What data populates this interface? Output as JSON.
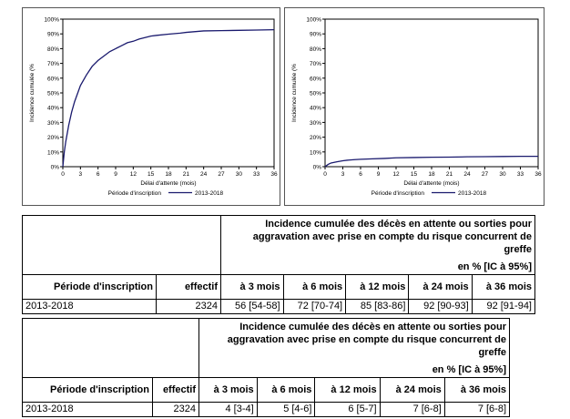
{
  "chart_data": [
    {
      "type": "line",
      "xlabel": "Délai d'attente (mois)",
      "ylabel": "Incidence cumulée (%",
      "xlim": [
        0,
        36
      ],
      "ylim": [
        0,
        100
      ],
      "x_ticks": [
        "0",
        "3",
        "6",
        "9",
        "12",
        "15",
        "18",
        "21",
        "24",
        "27",
        "30",
        "33",
        "36"
      ],
      "y_ticks": [
        "0%",
        "10%",
        "20%",
        "30%",
        "40%",
        "50%",
        "60%",
        "70%",
        "80%",
        "90%",
        "100%"
      ],
      "legend_title": "Période d'inscription",
      "series": [
        {
          "name": "2013-2018",
          "color": "#1a1a6e",
          "x": [
            0,
            0.25,
            0.5,
            1,
            1.5,
            2,
            3,
            4,
            5,
            6,
            7,
            8,
            9,
            10,
            11,
            12,
            13,
            14,
            15,
            16,
            18,
            20,
            21,
            24,
            27,
            30,
            33,
            36
          ],
          "y": [
            0,
            10,
            17,
            28,
            37,
            44,
            55,
            62,
            68,
            72,
            75,
            78,
            80,
            82,
            84,
            85,
            86.5,
            87.5,
            88.5,
            89,
            89.8,
            90.5,
            91,
            92,
            92.2,
            92.4,
            92.6,
            92.8
          ]
        }
      ]
    },
    {
      "type": "line",
      "xlabel": "Délai d'attente (mois)",
      "ylabel": "Incidence cumulée (%",
      "xlim": [
        0,
        36
      ],
      "ylim": [
        0,
        100
      ],
      "x_ticks": [
        "0",
        "3",
        "6",
        "9",
        "12",
        "15",
        "18",
        "21",
        "24",
        "27",
        "30",
        "33",
        "36"
      ],
      "y_ticks": [
        "0%",
        "10%",
        "20%",
        "30%",
        "40%",
        "50%",
        "60%",
        "70%",
        "80%",
        "90%",
        "100%"
      ],
      "legend_title": "Période d'inscription",
      "series": [
        {
          "name": "2013-2018",
          "color": "#1a1a6e",
          "x": [
            0,
            0.5,
            1,
            2,
            3,
            4,
            5,
            6,
            8,
            10,
            12,
            15,
            18,
            21,
            24,
            27,
            30,
            33,
            36
          ],
          "y": [
            0,
            1.5,
            2.5,
            3.3,
            4,
            4.5,
            4.8,
            5,
            5.3,
            5.6,
            6,
            6.2,
            6.4,
            6.5,
            6.7,
            6.8,
            6.9,
            7,
            7
          ]
        }
      ]
    }
  ],
  "tables": [
    {
      "title_line1": "Incidence cumulée des décès en attente ou sorties pour",
      "title_line2": "aggravation avec prise en compte du risque concurrent de greffe",
      "unit": "en % [IC à 95%]",
      "col_period": "Période d'inscription",
      "col_effectif": "effectif",
      "cols": [
        "à 3 mois",
        "à 6 mois",
        "à 12 mois",
        "à 24 mois",
        "à 36 mois"
      ],
      "row": {
        "period": "2013-2018",
        "effectif": "2324",
        "values": [
          "56 [54-58]",
          "72 [70-74]",
          "85 [83-86]",
          "92 [90-93]",
          "92 [91-94]"
        ]
      }
    },
    {
      "title_line1": "Incidence cumulée des décès en attente ou sorties pour",
      "title_line2": "aggravation avec prise en compte du risque concurrent de greffe",
      "unit": "en % [IC à 95%]",
      "col_period": "Période d'inscription",
      "col_effectif": "effectif",
      "cols": [
        "à 3 mois",
        "à 6 mois",
        "à 12 mois",
        "à 24 mois",
        "à 36 mois"
      ],
      "row": {
        "period": "2013-2018",
        "effectif": "2324",
        "values": [
          "4 [3-4]",
          "5 [4-6]",
          "6 [5-7]",
          "7 [6-8]",
          "7 [6-8]"
        ]
      }
    }
  ]
}
